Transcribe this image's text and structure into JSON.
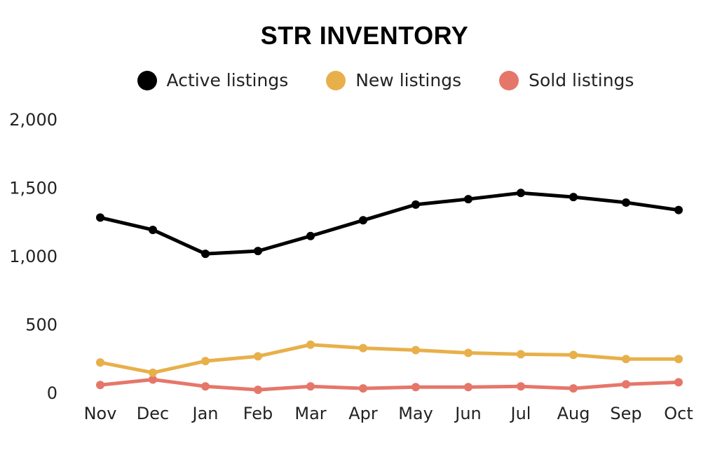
{
  "chart_data": {
    "type": "line",
    "title": "STR INVENTORY",
    "categories": [
      "Nov",
      "Dec",
      "Jan",
      "Feb",
      "Mar",
      "Apr",
      "May",
      "Jun",
      "Jul",
      "Aug",
      "Sep",
      "Oct"
    ],
    "series": [
      {
        "name": "Active listings",
        "color": "#000000",
        "values": [
          1280,
          1190,
          1015,
          1035,
          1145,
          1260,
          1375,
          1415,
          1460,
          1430,
          1390,
          1335
        ]
      },
      {
        "name": "New listings",
        "color": "#E8B04A",
        "values": [
          220,
          145,
          230,
          265,
          350,
          325,
          310,
          290,
          280,
          275,
          245,
          245
        ]
      },
      {
        "name": "Sold listings",
        "color": "#E5776A",
        "values": [
          55,
          95,
          45,
          20,
          45,
          30,
          40,
          40,
          45,
          30,
          60,
          75
        ]
      }
    ],
    "yticks": [
      "0",
      "500",
      "1,000",
      "1,500",
      "2,000"
    ],
    "ylim": [
      0,
      2000
    ],
    "xlabel": "",
    "ylabel": "",
    "legend": "top",
    "grid": false
  }
}
